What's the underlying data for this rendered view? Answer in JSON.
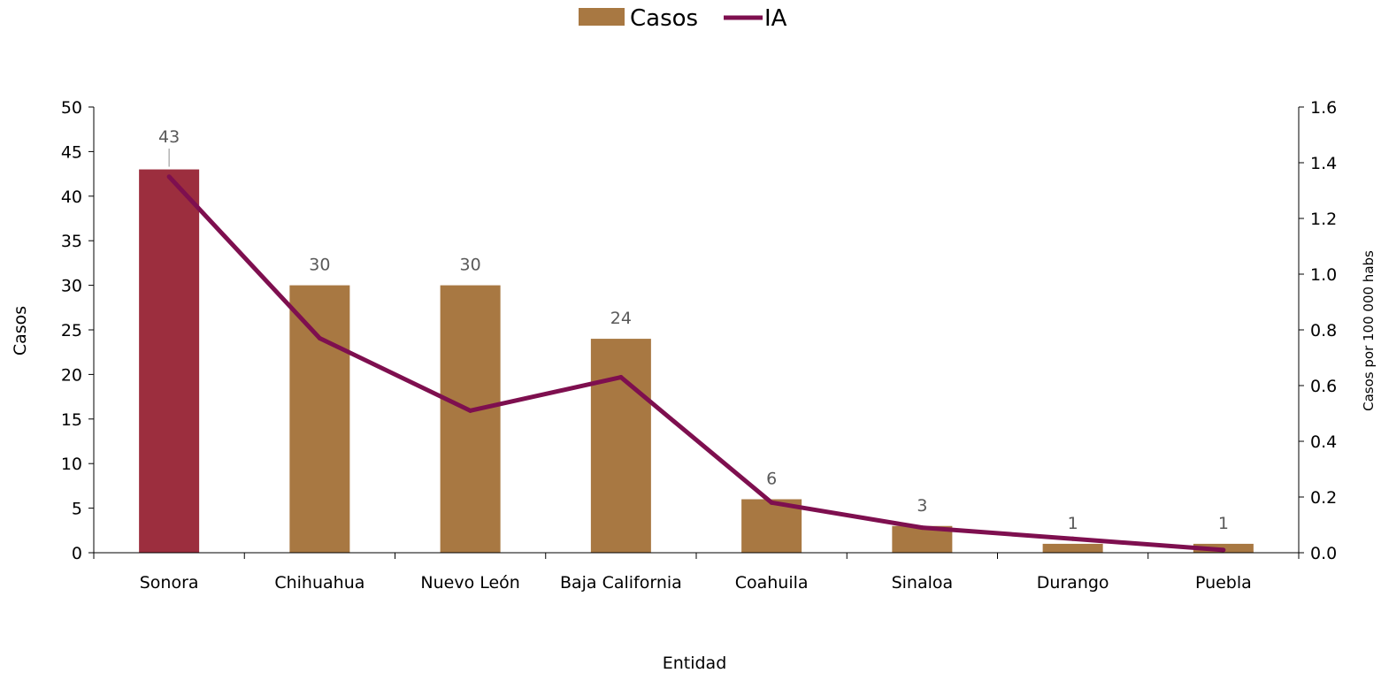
{
  "chart_data": {
    "type": "bar",
    "categories": [
      "Sonora",
      "Chihuahua",
      "Nuevo León",
      "Baja California",
      "Coahuila",
      "Sinaloa",
      "Durango",
      "Puebla"
    ],
    "series": [
      {
        "name": "Casos",
        "kind": "bar",
        "axis": "left",
        "values": [
          43,
          30,
          30,
          24,
          6,
          3,
          1,
          1
        ]
      },
      {
        "name": "IA",
        "kind": "line",
        "axis": "right",
        "values": [
          1.35,
          0.77,
          0.51,
          0.63,
          0.18,
          0.09,
          0.05,
          0.01
        ]
      }
    ],
    "data_labels": [
      "43",
      "30",
      "30",
      "24",
      "6",
      "3",
      "1",
      "1"
    ],
    "xlabel": "Entidad",
    "ylabel": "Casos",
    "y2label": "Casos por 100 000 habs",
    "ylim": [
      0,
      50
    ],
    "y2lim": [
      0,
      1.6
    ],
    "yticks": [
      "0",
      "5",
      "10",
      "15",
      "20",
      "25",
      "30",
      "35",
      "40",
      "45",
      "50"
    ],
    "y2ticks": [
      "0.0",
      "0.2",
      "0.4",
      "0.6",
      "0.8",
      "1.0",
      "1.2",
      "1.4",
      "1.6"
    ],
    "legend_position": "top-center",
    "grid": false,
    "colors": {
      "bar": "#A87842",
      "highlight_bar": "#9C2E3E",
      "line": "#7E0F4F",
      "axis": "#000000",
      "data_label": "#595959"
    },
    "highlight_index": 0
  }
}
